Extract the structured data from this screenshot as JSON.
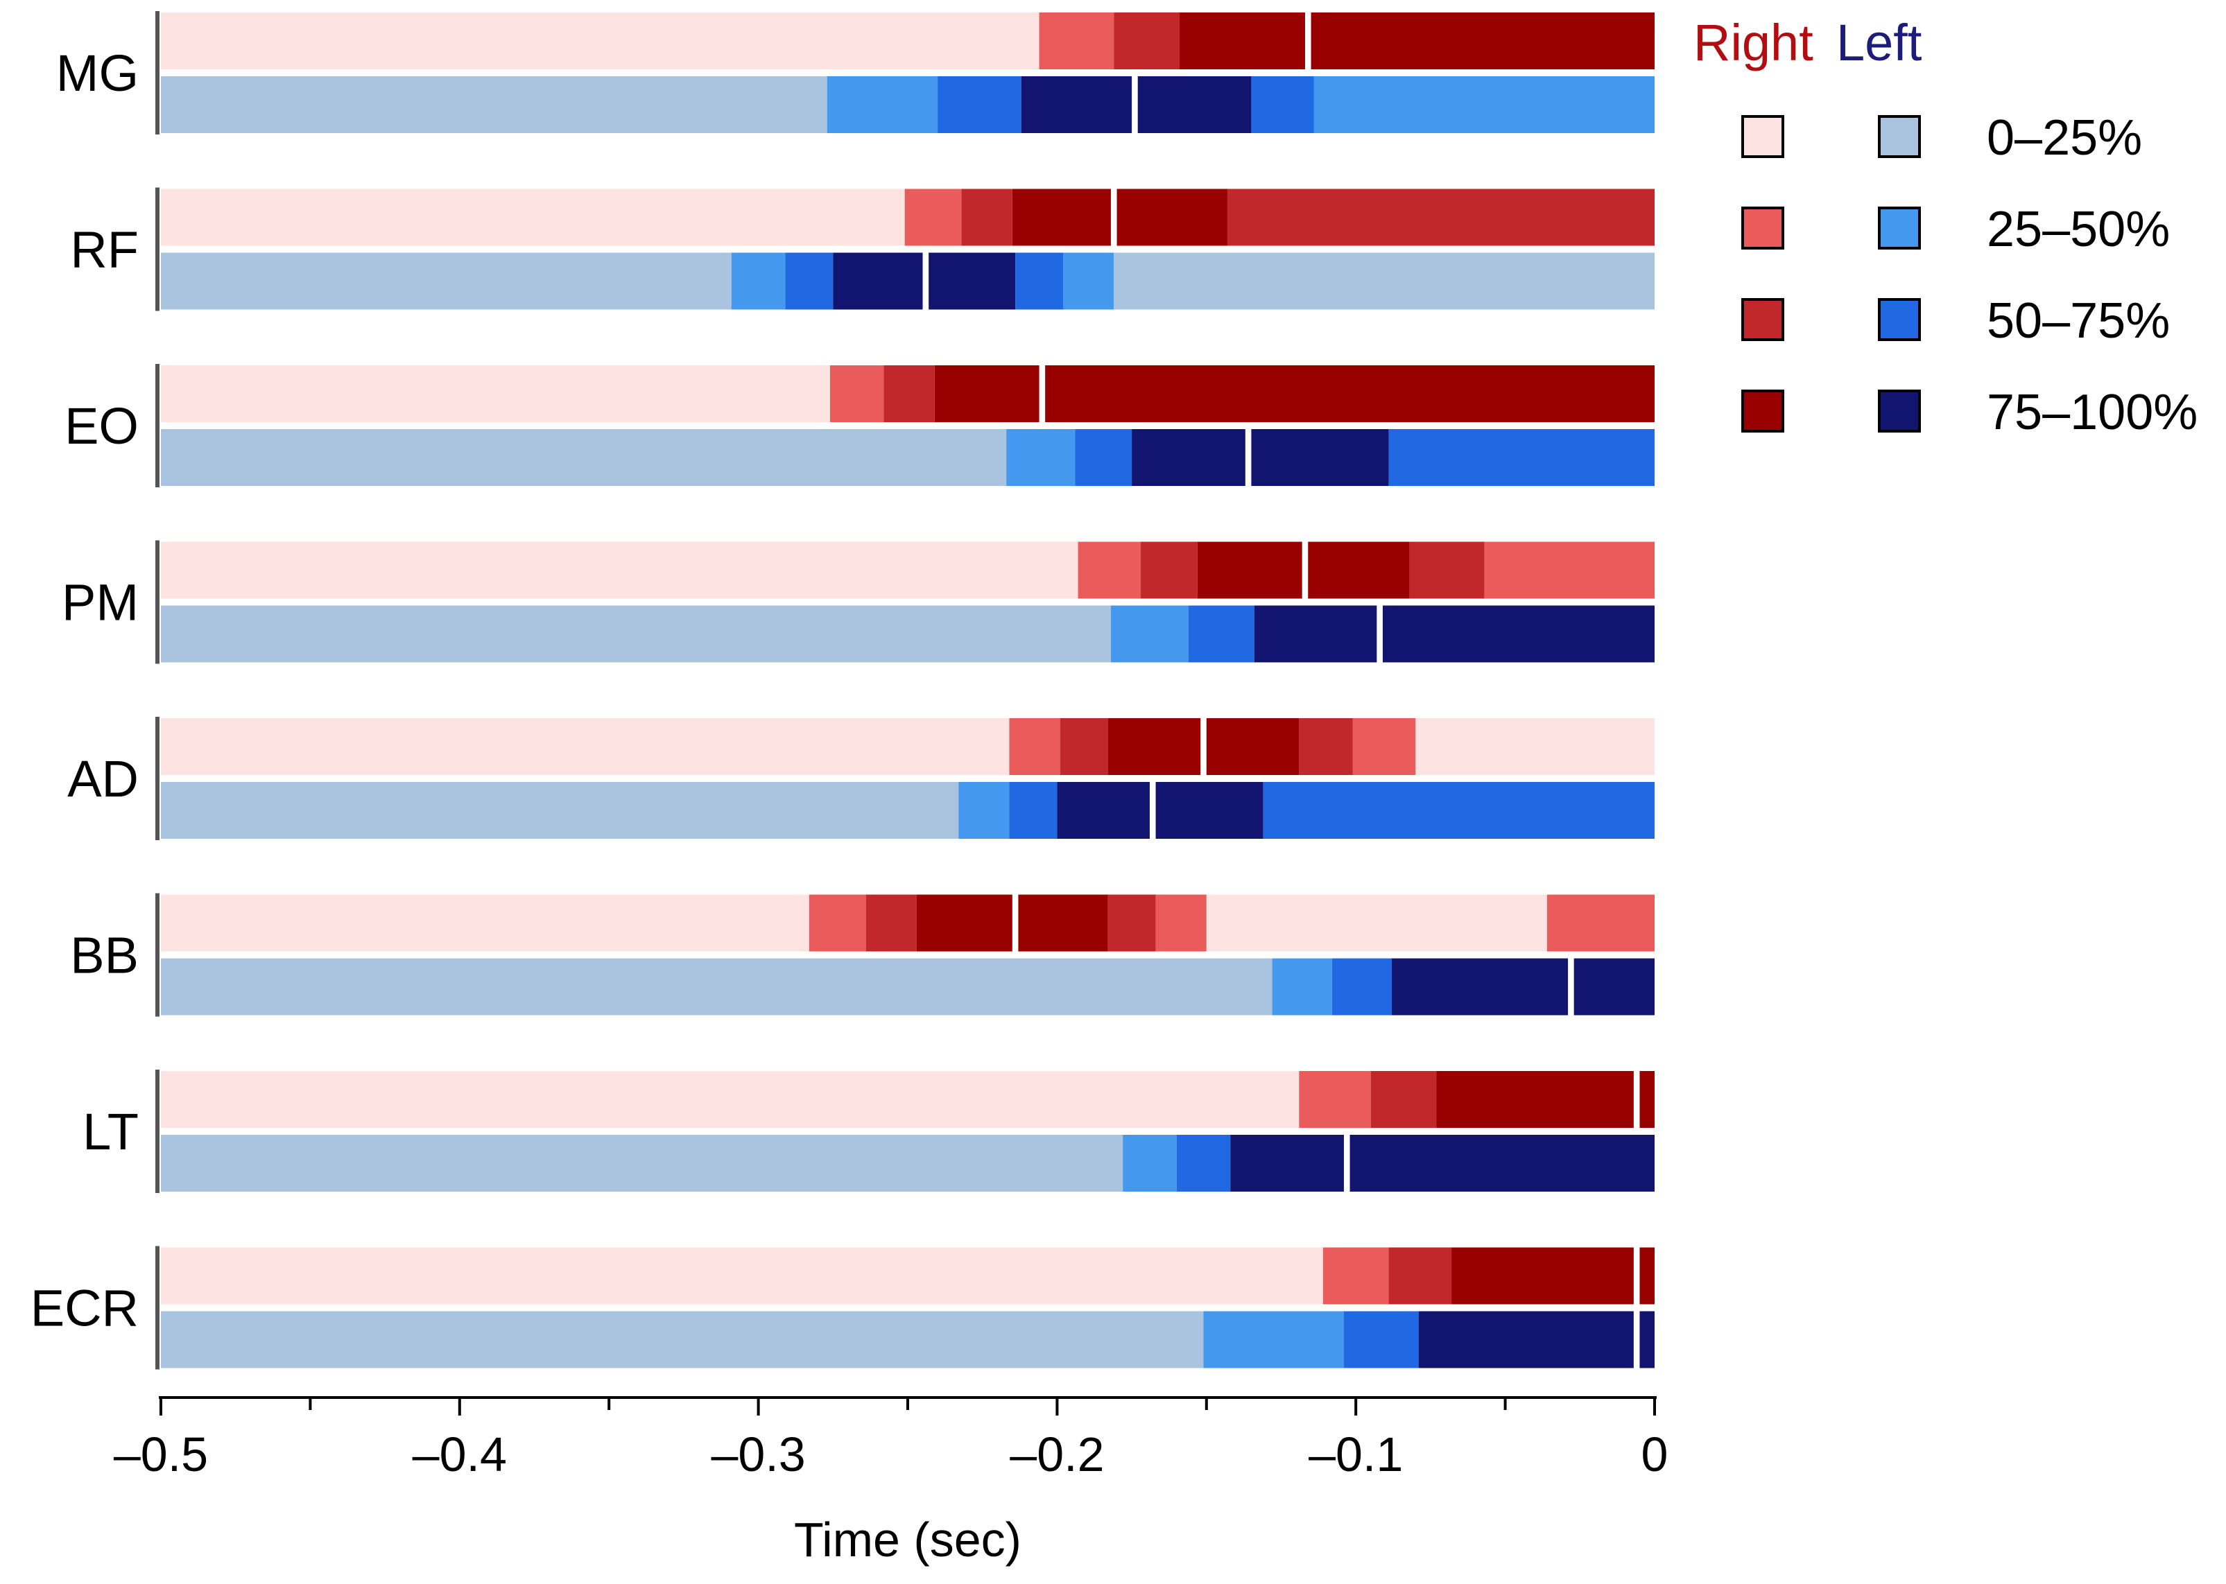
{
  "chart_data": {
    "type": "bar",
    "subtype": "horizontal-stacked-timeline",
    "title": "",
    "xlabel": "Time (sec)",
    "ylabel": "",
    "xlim": [
      -0.5,
      0
    ],
    "xticks": [
      -0.5,
      -0.4,
      -0.3,
      -0.2,
      -0.1,
      0
    ],
    "xtick_labels": [
      "–0.5",
      "–0.4",
      "–0.3",
      "–0.2",
      "–0.1",
      "0"
    ],
    "legend": {
      "position": "top-right",
      "side_headers": [
        "Right",
        "Left"
      ],
      "levels": [
        "0–25%",
        "25–50%",
        "50–75%",
        "75–100%"
      ]
    },
    "colors": {
      "right": [
        "#fde3e1",
        "#ea5c5c",
        "#c2272b",
        "#990000"
      ],
      "left": [
        "#aac4e0",
        "#4499ee",
        "#2169e3",
        "#121570"
      ],
      "right_header": "#b30d12",
      "left_header": "#1c1c7a",
      "axis": "#000000",
      "row_tick": "#555555"
    },
    "muscles": [
      {
        "name": "MG",
        "right": [
          {
            "start": -0.5,
            "end": -0.206,
            "level": 0
          },
          {
            "start": -0.206,
            "end": -0.181,
            "level": 1
          },
          {
            "start": -0.181,
            "end": -0.159,
            "level": 2
          },
          {
            "start": -0.159,
            "end": -0.117,
            "level": 3
          },
          {
            "start": -0.115,
            "end": 0.0,
            "level": 3
          }
        ],
        "left": [
          {
            "start": -0.5,
            "end": -0.277,
            "level": 0
          },
          {
            "start": -0.277,
            "end": -0.24,
            "level": 1
          },
          {
            "start": -0.24,
            "end": -0.212,
            "level": 2
          },
          {
            "start": -0.212,
            "end": -0.175,
            "level": 3
          },
          {
            "start": -0.173,
            "end": -0.135,
            "level": 3
          },
          {
            "start": -0.135,
            "end": -0.114,
            "level": 2
          },
          {
            "start": -0.114,
            "end": 0.0,
            "level": 1
          }
        ]
      },
      {
        "name": "RF",
        "right": [
          {
            "start": -0.5,
            "end": -0.251,
            "level": 0
          },
          {
            "start": -0.251,
            "end": -0.232,
            "level": 1
          },
          {
            "start": -0.232,
            "end": -0.215,
            "level": 2
          },
          {
            "start": -0.215,
            "end": -0.182,
            "level": 3
          },
          {
            "start": -0.18,
            "end": -0.143,
            "level": 3
          },
          {
            "start": -0.143,
            "end": 0.0,
            "level": 2
          }
        ],
        "left": [
          {
            "start": -0.5,
            "end": -0.309,
            "level": 0
          },
          {
            "start": -0.309,
            "end": -0.291,
            "level": 1
          },
          {
            "start": -0.291,
            "end": -0.275,
            "level": 2
          },
          {
            "start": -0.275,
            "end": -0.245,
            "level": 3
          },
          {
            "start": -0.243,
            "end": -0.214,
            "level": 3
          },
          {
            "start": -0.214,
            "end": -0.198,
            "level": 2
          },
          {
            "start": -0.198,
            "end": -0.181,
            "level": 1
          },
          {
            "start": -0.181,
            "end": 0.0,
            "level": 0
          }
        ]
      },
      {
        "name": "EO",
        "right": [
          {
            "start": -0.5,
            "end": -0.276,
            "level": 0
          },
          {
            "start": -0.276,
            "end": -0.258,
            "level": 1
          },
          {
            "start": -0.258,
            "end": -0.241,
            "level": 2
          },
          {
            "start": -0.241,
            "end": -0.206,
            "level": 3
          },
          {
            "start": -0.204,
            "end": 0.0,
            "level": 3
          }
        ],
        "left": [
          {
            "start": -0.5,
            "end": -0.217,
            "level": 0
          },
          {
            "start": -0.217,
            "end": -0.194,
            "level": 1
          },
          {
            "start": -0.194,
            "end": -0.175,
            "level": 2
          },
          {
            "start": -0.175,
            "end": -0.137,
            "level": 3
          },
          {
            "start": -0.135,
            "end": -0.089,
            "level": 3
          },
          {
            "start": -0.089,
            "end": 0.0,
            "level": 2
          }
        ]
      },
      {
        "name": "PM",
        "right": [
          {
            "start": -0.5,
            "end": -0.193,
            "level": 0
          },
          {
            "start": -0.193,
            "end": -0.172,
            "level": 1
          },
          {
            "start": -0.172,
            "end": -0.153,
            "level": 2
          },
          {
            "start": -0.153,
            "end": -0.118,
            "level": 3
          },
          {
            "start": -0.116,
            "end": -0.082,
            "level": 3
          },
          {
            "start": -0.082,
            "end": -0.057,
            "level": 2
          },
          {
            "start": -0.057,
            "end": 0.0,
            "level": 1
          }
        ],
        "left": [
          {
            "start": -0.5,
            "end": -0.182,
            "level": 0
          },
          {
            "start": -0.182,
            "end": -0.156,
            "level": 1
          },
          {
            "start": -0.156,
            "end": -0.134,
            "level": 2
          },
          {
            "start": -0.134,
            "end": -0.093,
            "level": 3
          },
          {
            "start": -0.091,
            "end": 0.0,
            "level": 3
          }
        ]
      },
      {
        "name": "AD",
        "right": [
          {
            "start": -0.5,
            "end": -0.216,
            "level": 0
          },
          {
            "start": -0.216,
            "end": -0.199,
            "level": 1
          },
          {
            "start": -0.199,
            "end": -0.183,
            "level": 2
          },
          {
            "start": -0.183,
            "end": -0.152,
            "level": 3
          },
          {
            "start": -0.15,
            "end": -0.119,
            "level": 3
          },
          {
            "start": -0.119,
            "end": -0.101,
            "level": 2
          },
          {
            "start": -0.101,
            "end": -0.08,
            "level": 1
          },
          {
            "start": -0.08,
            "end": 0.0,
            "level": 0
          }
        ],
        "left": [
          {
            "start": -0.5,
            "end": -0.233,
            "level": 0
          },
          {
            "start": -0.233,
            "end": -0.216,
            "level": 1
          },
          {
            "start": -0.216,
            "end": -0.2,
            "level": 2
          },
          {
            "start": -0.2,
            "end": -0.169,
            "level": 3
          },
          {
            "start": -0.167,
            "end": -0.131,
            "level": 3
          },
          {
            "start": -0.131,
            "end": 0.0,
            "level": 2
          }
        ]
      },
      {
        "name": "BB",
        "right": [
          {
            "start": -0.5,
            "end": -0.283,
            "level": 0
          },
          {
            "start": -0.283,
            "end": -0.264,
            "level": 1
          },
          {
            "start": -0.264,
            "end": -0.247,
            "level": 2
          },
          {
            "start": -0.247,
            "end": -0.215,
            "level": 3
          },
          {
            "start": -0.213,
            "end": -0.183,
            "level": 3
          },
          {
            "start": -0.183,
            "end": -0.167,
            "level": 2
          },
          {
            "start": -0.167,
            "end": -0.15,
            "level": 1
          },
          {
            "start": -0.15,
            "end": -0.036,
            "level": 0
          },
          {
            "start": -0.036,
            "end": 0.0,
            "level": 1
          }
        ],
        "left": [
          {
            "start": -0.5,
            "end": -0.128,
            "level": 0
          },
          {
            "start": -0.128,
            "end": -0.108,
            "level": 1
          },
          {
            "start": -0.108,
            "end": -0.088,
            "level": 2
          },
          {
            "start": -0.088,
            "end": -0.029,
            "level": 3
          },
          {
            "start": -0.027,
            "end": 0.0,
            "level": 3
          }
        ]
      },
      {
        "name": "LT",
        "right": [
          {
            "start": -0.5,
            "end": -0.119,
            "level": 0
          },
          {
            "start": -0.119,
            "end": -0.095,
            "level": 1
          },
          {
            "start": -0.095,
            "end": -0.073,
            "level": 2
          },
          {
            "start": -0.073,
            "end": -0.007,
            "level": 3
          },
          {
            "start": -0.005,
            "end": 0.0,
            "level": 3
          }
        ],
        "left": [
          {
            "start": -0.5,
            "end": -0.178,
            "level": 0
          },
          {
            "start": -0.178,
            "end": -0.16,
            "level": 1
          },
          {
            "start": -0.16,
            "end": -0.142,
            "level": 2
          },
          {
            "start": -0.142,
            "end": -0.104,
            "level": 3
          },
          {
            "start": -0.102,
            "end": 0.0,
            "level": 3
          }
        ]
      },
      {
        "name": "ECR",
        "right": [
          {
            "start": -0.5,
            "end": -0.111,
            "level": 0
          },
          {
            "start": -0.111,
            "end": -0.089,
            "level": 1
          },
          {
            "start": -0.089,
            "end": -0.068,
            "level": 2
          },
          {
            "start": -0.068,
            "end": -0.007,
            "level": 3
          },
          {
            "start": -0.005,
            "end": 0.0,
            "level": 3
          }
        ],
        "left": [
          {
            "start": -0.5,
            "end": -0.151,
            "level": 0
          },
          {
            "start": -0.151,
            "end": -0.104,
            "level": 1
          },
          {
            "start": -0.104,
            "end": -0.079,
            "level": 2
          },
          {
            "start": -0.079,
            "end": -0.007,
            "level": 3
          },
          {
            "start": -0.005,
            "end": 0.0,
            "level": 3
          }
        ]
      }
    ]
  }
}
